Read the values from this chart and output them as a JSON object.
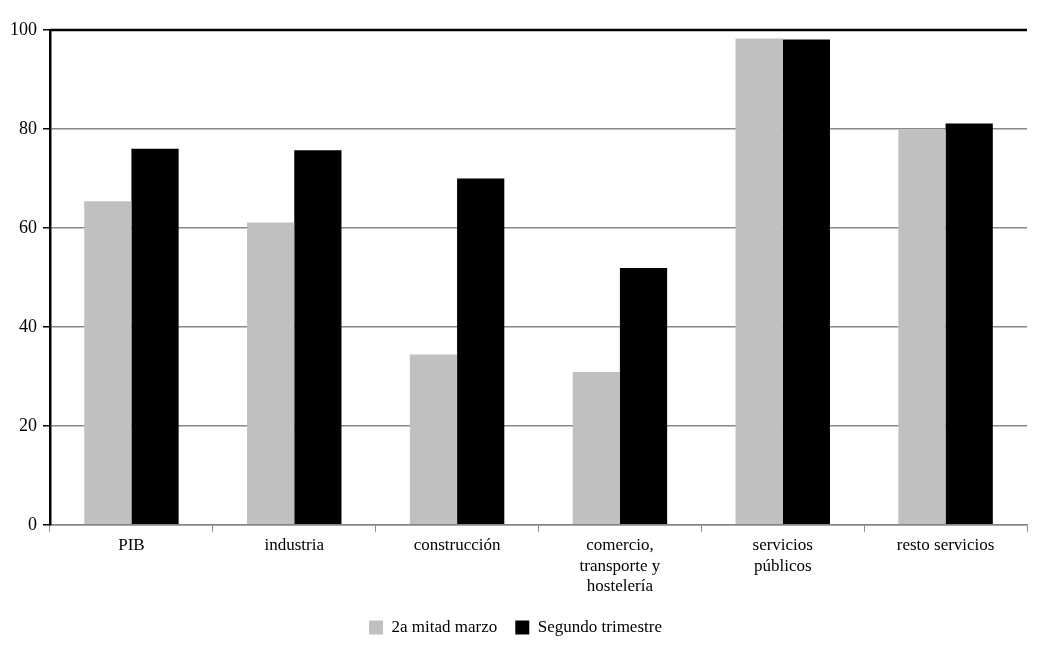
{
  "chart_data": {
    "type": "bar",
    "categories": [
      "PIB",
      "industria",
      "construcción",
      "comercio, transporte y hostelería",
      "servicios públicos",
      "resto servicios"
    ],
    "series": [
      {
        "name": "2a mitad marzo",
        "color": "#c0c0c0",
        "values": [
          65.4,
          61.1,
          34.4,
          30.9,
          98.3,
          79.8
        ]
      },
      {
        "name": "Segundo trimestre",
        "color": "#000000",
        "values": [
          76.0,
          75.7,
          70.0,
          51.9,
          98.1,
          81.1
        ]
      }
    ],
    "ylim": [
      0,
      100
    ],
    "yticks": [
      0,
      20,
      40,
      60,
      80,
      100
    ],
    "grid": "y",
    "legend": "bottom"
  }
}
